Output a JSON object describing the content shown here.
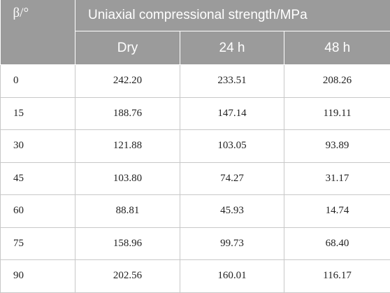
{
  "table": {
    "header": {
      "first_col": "β/°",
      "group_label": "Uniaxial compressional strength/MPa",
      "sub_columns": [
        "Dry",
        "24 h",
        "48 h"
      ]
    },
    "rows": [
      [
        "0",
        "242.20",
        "233.51",
        "208.26"
      ],
      [
        "15",
        "188.76",
        "147.14",
        "119.11"
      ],
      [
        "30",
        "121.88",
        "103.05",
        "93.89"
      ],
      [
        "45",
        "103.80",
        "74.27",
        "31.17"
      ],
      [
        "60",
        "88.81",
        "45.93",
        "14.74"
      ],
      [
        "75",
        "158.96",
        "99.73",
        "68.40"
      ],
      [
        "90",
        "202.56",
        "160.01",
        "116.17"
      ]
    ]
  },
  "colors": {
    "header_bg": "#9b9b9b",
    "header_text": "#ffffff",
    "grid": "#c8c8c8"
  }
}
